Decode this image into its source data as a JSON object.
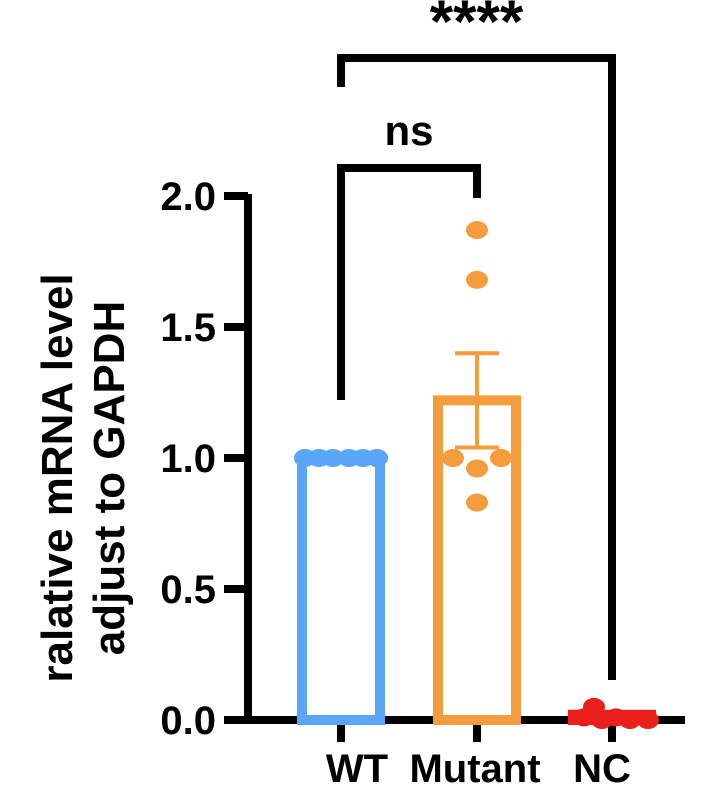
{
  "chart_data": {
    "type": "bar",
    "title": "",
    "xlabel": "",
    "ylabel": [
      "ralative mRNA level",
      "adjust to GAPDH"
    ],
    "ylim": [
      0,
      2.0
    ],
    "yticks": [
      0.0,
      0.5,
      1.0,
      1.5,
      2.0
    ],
    "ytick_labels": [
      "0.0",
      "0.5",
      "1.0",
      "1.5",
      "2.0"
    ],
    "categories": [
      "WT",
      "Mutant",
      "NC"
    ],
    "values": [
      1.0,
      1.22,
      0.02
    ],
    "error": [
      0,
      0.18,
      0
    ],
    "colors": [
      "#5aa5f5",
      "#f59c3c",
      "#e8201e"
    ],
    "points": [
      [
        1.0,
        1.0,
        1.0,
        1.0,
        1.0,
        1.0
      ],
      [
        1.87,
        1.68,
        1.0,
        1.0,
        0.96,
        0.83
      ],
      [
        0.05,
        0.01,
        0.01,
        0.0,
        0.0,
        0.0
      ]
    ],
    "annotations": [
      {
        "label": "ns",
        "from": "WT",
        "to": "Mutant"
      },
      {
        "label": "****",
        "from": "WT",
        "to": "NC"
      }
    ]
  }
}
